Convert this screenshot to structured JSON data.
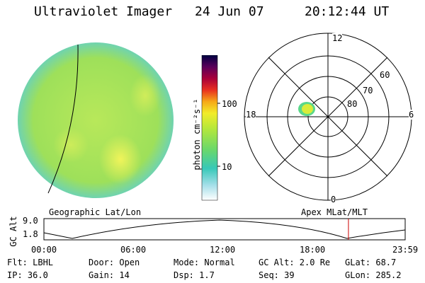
{
  "header": {
    "instrument": "Ultraviolet Imager",
    "date": "24 Jun 07",
    "time": "20:12:44 UT"
  },
  "colorbar": {
    "unit_label": "photon cm⁻²s⁻¹",
    "ticks": [
      "100",
      "10"
    ]
  },
  "polar_plot": {
    "mlt_labels": [
      "12",
      "18",
      "6",
      "0"
    ],
    "lat_labels": [
      "60",
      "70",
      "80"
    ]
  },
  "altitude_plot": {
    "y_axis_label": "GC Alt",
    "y_ticks": [
      "9.0",
      "1.8"
    ],
    "left_caption": "Geographic Lat/Lon",
    "right_caption": "Apex MLat/MLT",
    "x_ticks": [
      "00:00",
      "06:00",
      "12:00",
      "18:00",
      "23:59"
    ],
    "current_time_fraction": 0.843
  },
  "status": {
    "row1": [
      {
        "text": "Flt: LBHL"
      },
      {
        "text": "Door: Open"
      },
      {
        "text": "Mode: Normal"
      },
      {
        "text": "GC Alt: 2.0 Re"
      },
      {
        "text": "GLat:  68.7"
      }
    ],
    "row2": [
      {
        "text": "IP: 36.0"
      },
      {
        "text": "Gain: 14"
      },
      {
        "text": "Dsp:   1.7"
      },
      {
        "text": "Seq: 39"
      },
      {
        "text": "GLon: 285.2"
      }
    ]
  },
  "colors": {
    "disk_fill": "#9ee05a",
    "disk_edge": "#6fd3b0",
    "bright_patch": "#e0f25a",
    "accent_red": "#cc0000"
  }
}
